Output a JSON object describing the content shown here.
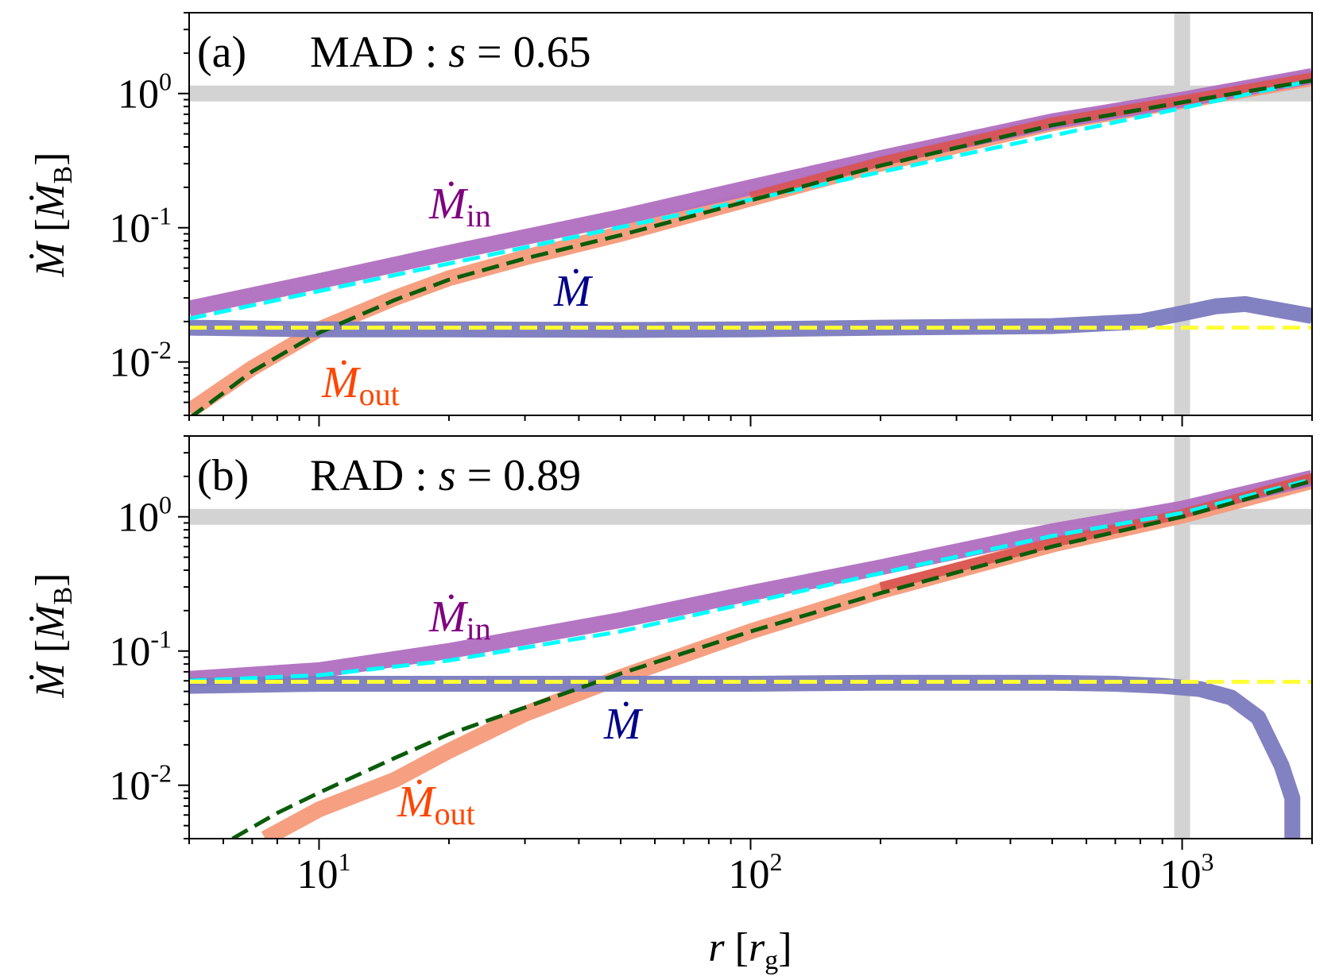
{
  "chart_data": [
    {
      "type": "line",
      "panel_label": "(a)",
      "title": "MAD : s = 0.65",
      "title_parts": {
        "model": "MAD",
        "param": "s",
        "value": "= 0.65"
      },
      "xlabel": "r [r_g]",
      "ylabel": "Ṁ [Ṁ_B]",
      "xscale": "log",
      "yscale": "log",
      "xlim": [
        5,
        2000
      ],
      "ylim": [
        0.004,
        4
      ],
      "ytick_labels": [
        {
          "base": "10",
          "exp": "0"
        },
        {
          "base": "10",
          "exp": "-1"
        },
        {
          "base": "10",
          "exp": "-2"
        }
      ],
      "xtick_labels": [],
      "reference_lines": {
        "horizontal_y": 1.0,
        "vertical_x": 1000
      },
      "series": [
        {
          "name": "Ṁ_in",
          "color": "#b06fc0",
          "style": "thick",
          "x": [
            5,
            10,
            20,
            50,
            100,
            200,
            500,
            1000,
            2000
          ],
          "y": [
            0.025,
            0.04,
            0.065,
            0.12,
            0.2,
            0.33,
            0.62,
            0.9,
            1.35
          ]
        },
        {
          "name": "Ṁ_out",
          "color": "#f59b7a",
          "style": "thick",
          "x": [
            5,
            7,
            10,
            15,
            20,
            30,
            50,
            100,
            200,
            500,
            1000,
            2000
          ],
          "y": [
            0.0043,
            0.009,
            0.0175,
            0.03,
            0.042,
            0.06,
            0.09,
            0.165,
            0.3,
            0.6,
            0.88,
            1.3
          ]
        },
        {
          "name": "Ṁ_out (red overlay)",
          "color": "#d9534f",
          "style": "thick-upper",
          "x": [
            100,
            200,
            500,
            1000,
            2000
          ],
          "y": [
            0.17,
            0.31,
            0.61,
            0.89,
            1.32
          ]
        },
        {
          "name": "Ṁ",
          "color": "#7b7bbf",
          "style": "thick",
          "x": [
            5,
            10,
            20,
            50,
            100,
            200,
            500,
            800,
            1000,
            1200,
            1400,
            2000
          ],
          "y": [
            0.018,
            0.0175,
            0.0175,
            0.0173,
            0.0175,
            0.018,
            0.0185,
            0.02,
            0.023,
            0.026,
            0.027,
            0.022
          ]
        },
        {
          "name": "fit Ṁ_in",
          "color": "#00ffff",
          "style": "dashed",
          "x": [
            5,
            2000
          ],
          "y": [
            0.021,
            1.25
          ]
        },
        {
          "name": "fit Ṁ_out",
          "color": "#0b5c0b",
          "style": "dashed",
          "x": [
            5,
            7,
            10,
            15,
            20,
            30,
            50,
            100,
            200,
            500,
            1000,
            2000
          ],
          "y": [
            0.0038,
            0.0085,
            0.0165,
            0.029,
            0.041,
            0.059,
            0.088,
            0.16,
            0.29,
            0.58,
            0.86,
            1.25
          ]
        },
        {
          "name": "fit Ṁ",
          "color": "#ffff33",
          "style": "dashed",
          "x": [
            5,
            2000
          ],
          "y": [
            0.018,
            0.018
          ]
        }
      ],
      "annotations": [
        {
          "symbol": "Ṁ",
          "sub": "in",
          "color": "#800080"
        },
        {
          "symbol": "Ṁ",
          "sub": "",
          "color": "#00008b"
        },
        {
          "symbol": "Ṁ",
          "sub": "out",
          "color": "#ff4500"
        }
      ]
    },
    {
      "type": "line",
      "panel_label": "(b)",
      "title": "RAD : s = 0.89",
      "title_parts": {
        "model": "RAD",
        "param": "s",
        "value": "= 0.89"
      },
      "xlabel": "r [r_g]",
      "ylabel": "Ṁ [Ṁ_B]",
      "xscale": "log",
      "yscale": "log",
      "xlim": [
        5,
        2000
      ],
      "ylim": [
        0.004,
        4
      ],
      "ytick_labels": [
        {
          "base": "10",
          "exp": "0"
        },
        {
          "base": "10",
          "exp": "-1"
        },
        {
          "base": "10",
          "exp": "-2"
        }
      ],
      "xtick_labels": [
        {
          "base": "10",
          "exp": "1"
        },
        {
          "base": "10",
          "exp": "2"
        },
        {
          "base": "10",
          "exp": "3"
        }
      ],
      "reference_lines": {
        "horizontal_y": 1.0,
        "vertical_x": 1000
      },
      "series": [
        {
          "name": "Ṁ_in",
          "color": "#b06fc0",
          "style": "thick",
          "x": [
            5,
            10,
            20,
            50,
            100,
            200,
            500,
            1000,
            2000
          ],
          "y": [
            0.062,
            0.072,
            0.1,
            0.17,
            0.27,
            0.42,
            0.78,
            1.15,
            1.95
          ]
        },
        {
          "name": "Ṁ_out",
          "color": "#f59b7a",
          "style": "thick",
          "x": [
            7.5,
            10,
            15,
            20,
            30,
            50,
            100,
            200,
            500,
            1000,
            2000
          ],
          "y": [
            0.004,
            0.0066,
            0.011,
            0.018,
            0.034,
            0.064,
            0.14,
            0.28,
            0.62,
            1.02,
            1.85
          ]
        },
        {
          "name": "Ṁ_out (red overlay)",
          "color": "#d9534f",
          "style": "thick-upper",
          "x": [
            200,
            500,
            1000,
            2000
          ],
          "y": [
            0.3,
            0.64,
            1.05,
            1.95
          ]
        },
        {
          "name": "Ṁ",
          "color": "#7b7bbf",
          "style": "thick",
          "x": [
            5,
            10,
            20,
            50,
            100,
            200,
            500,
            700,
            900,
            1100,
            1300,
            1500,
            1700,
            1800,
            1800
          ],
          "y": [
            0.055,
            0.057,
            0.057,
            0.057,
            0.057,
            0.058,
            0.058,
            0.057,
            0.055,
            0.052,
            0.045,
            0.032,
            0.014,
            0.008,
            0.004
          ]
        },
        {
          "name": "fit Ṁ_in",
          "color": "#00ffff",
          "style": "dashed",
          "x": [
            5,
            10,
            20,
            50,
            100,
            200,
            500,
            1000,
            2000
          ],
          "y": [
            0.06,
            0.066,
            0.085,
            0.14,
            0.23,
            0.38,
            0.72,
            1.07,
            1.9
          ]
        },
        {
          "name": "fit Ṁ_out",
          "color": "#0b5c0b",
          "style": "dashed",
          "x": [
            6.3,
            8,
            10,
            15,
            20,
            30,
            50,
            100,
            200,
            500,
            1000,
            2000
          ],
          "y": [
            0.004,
            0.0062,
            0.0088,
            0.016,
            0.024,
            0.038,
            0.068,
            0.14,
            0.27,
            0.6,
            1.0,
            1.85
          ]
        },
        {
          "name": "fit Ṁ",
          "color": "#ffff33",
          "style": "dashed",
          "x": [
            5,
            2000
          ],
          "y": [
            0.059,
            0.059
          ]
        }
      ],
      "annotations": [
        {
          "symbol": "Ṁ",
          "sub": "in",
          "color": "#800080"
        },
        {
          "symbol": "Ṁ",
          "sub": "",
          "color": "#00008b"
        },
        {
          "symbol": "Ṁ",
          "sub": "out",
          "color": "#ff4500"
        }
      ]
    }
  ],
  "shared_xlabel": {
    "symbol": "r",
    "bracket_open": "[",
    "unit": "r",
    "unit_sub": "g",
    "bracket_close": "]"
  },
  "shared_ylabel": {
    "symbol": "Ṁ",
    "bracket_open": "[",
    "unit": "Ṁ",
    "unit_sub": "B",
    "bracket_close": "]"
  }
}
